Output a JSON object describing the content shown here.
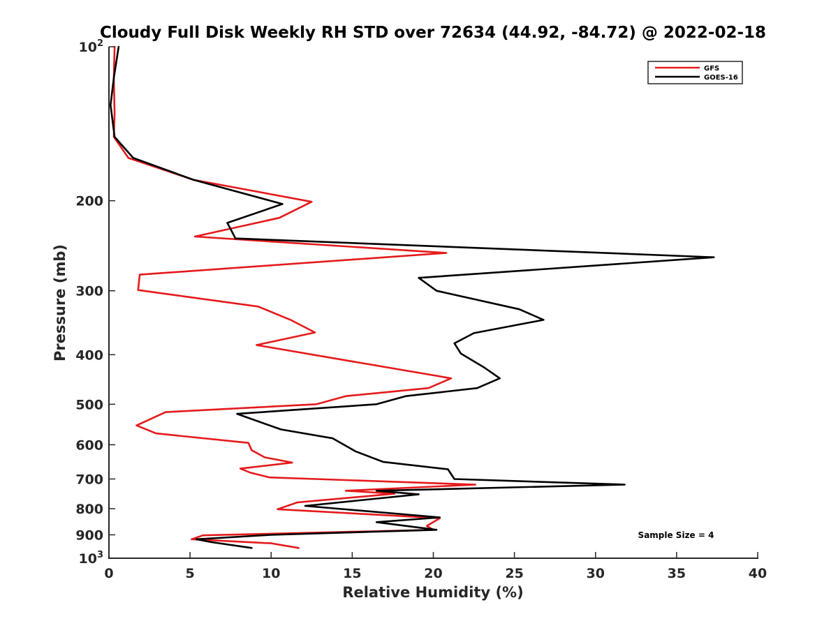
{
  "chart_data": {
    "type": "line",
    "title": "Cloudy Full Disk Weekly RH STD over 72634 (44.92, -84.72) @ 2022-02-18",
    "xlabel": "Relative Humidity (%)",
    "ylabel": "Pressure (mb)",
    "xlim": [
      0,
      40
    ],
    "ylim": [
      100,
      1000
    ],
    "y_scale": "log",
    "y_reversed": true,
    "grid": false,
    "legend_position": "top-right",
    "x_ticks": [
      "0",
      "5",
      "10",
      "15",
      "20",
      "25",
      "30",
      "35",
      "40"
    ],
    "y_ticks": [
      {
        "value": 100,
        "base": "10",
        "exp": "2"
      },
      {
        "value": 200,
        "label": "200"
      },
      {
        "value": 300,
        "label": "300"
      },
      {
        "value": 400,
        "label": "400"
      },
      {
        "value": 500,
        "label": "500"
      },
      {
        "value": 600,
        "label": "600"
      },
      {
        "value": 700,
        "label": "700"
      },
      {
        "value": 800,
        "label": "800"
      },
      {
        "value": 900,
        "label": "900"
      },
      {
        "value": 1000,
        "base": "10",
        "exp": "3"
      }
    ],
    "annotation": "Sample Size = 4",
    "series": [
      {
        "name": "GFS",
        "color": "#e41a1c",
        "points": [
          [
            0.35,
            100
          ],
          [
            0.3,
            115
          ],
          [
            0.35,
            135
          ],
          [
            0.3,
            150
          ],
          [
            1.2,
            165
          ],
          [
            5.2,
            182
          ],
          [
            12.5,
            201
          ],
          [
            10.5,
            216
          ],
          [
            5.3,
            235
          ],
          [
            20.8,
            253
          ],
          [
            1.9,
            279
          ],
          [
            1.8,
            299
          ],
          [
            9.2,
            322
          ],
          [
            11.2,
            342
          ],
          [
            12.7,
            362
          ],
          [
            9.1,
            383
          ],
          [
            21.1,
            445
          ],
          [
            19.7,
            465
          ],
          [
            14.6,
            482
          ],
          [
            12.8,
            500
          ],
          [
            3.5,
            518
          ],
          [
            1.7,
            550
          ],
          [
            2.9,
            570
          ],
          [
            8.6,
            595
          ],
          [
            8.8,
            615
          ],
          [
            9.6,
            635
          ],
          [
            11.3,
            650
          ],
          [
            8.1,
            668
          ],
          [
            8.7,
            680
          ],
          [
            9.9,
            695
          ],
          [
            22.6,
            718
          ],
          [
            14.6,
            738
          ],
          [
            17.6,
            748
          ],
          [
            11.6,
            778
          ],
          [
            10.4,
            802
          ],
          [
            20.4,
            835
          ],
          [
            19.6,
            865
          ],
          [
            20.0,
            880
          ],
          [
            5.8,
            902
          ],
          [
            5.1,
            918
          ],
          [
            10.0,
            935
          ],
          [
            11.7,
            955
          ]
        ]
      },
      {
        "name": "GOES-16",
        "color": "#000000",
        "points": [
          [
            0.6,
            100
          ],
          [
            0.3,
            115
          ],
          [
            0.1,
            130
          ],
          [
            0.35,
            150
          ],
          [
            1.5,
            165
          ],
          [
            5.2,
            182
          ],
          [
            10.7,
            203
          ],
          [
            7.3,
            221
          ],
          [
            7.8,
            237
          ],
          [
            37.3,
            258
          ],
          [
            19.1,
            283
          ],
          [
            20.2,
            300
          ],
          [
            25.3,
            326
          ],
          [
            26.8,
            342
          ],
          [
            22.5,
            363
          ],
          [
            21.3,
            380
          ],
          [
            21.7,
            398
          ],
          [
            23.1,
            423
          ],
          [
            24.1,
            445
          ],
          [
            22.7,
            465
          ],
          [
            18.3,
            482
          ],
          [
            16.5,
            500
          ],
          [
            7.9,
            522
          ],
          [
            10.6,
            560
          ],
          [
            13.8,
            583
          ],
          [
            15.2,
            618
          ],
          [
            16.9,
            648
          ],
          [
            20.9,
            670
          ],
          [
            21.3,
            700
          ],
          [
            31.8,
            718
          ],
          [
            16.5,
            738
          ],
          [
            19.1,
            750
          ],
          [
            12.1,
            790
          ],
          [
            20.4,
            832
          ],
          [
            16.5,
            850
          ],
          [
            20.2,
            880
          ],
          [
            10.0,
            900
          ],
          [
            5.4,
            918
          ],
          [
            6.3,
            930
          ],
          [
            8.8,
            955
          ]
        ]
      }
    ]
  }
}
